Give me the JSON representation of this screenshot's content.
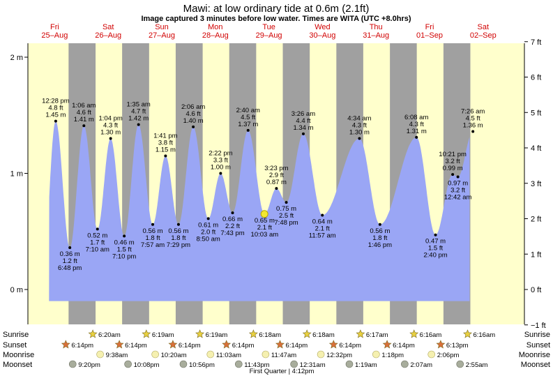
{
  "title": "Mawi: at low  ordinary tide at 0.6m (2.1ft)",
  "subtitle": "Image captured 3 minutes before low water. Times are WITA (UTC +8.0hrs)",
  "colors": {
    "day": "#ffffcc",
    "night": "#a0a0a0",
    "tide": "#9aa6f5",
    "day_label": "#d10000",
    "sunrise_star": "#e8d040",
    "sunset_star": "#d9703a",
    "moonrise": "#f5f0b0",
    "moonset": "#a8ad9c"
  },
  "days": [
    {
      "dow": "Fri",
      "date": "25–Aug"
    },
    {
      "dow": "Sat",
      "date": "26–Aug"
    },
    {
      "dow": "Sun",
      "date": "27–Aug"
    },
    {
      "dow": "Mon",
      "date": "28–Aug"
    },
    {
      "dow": "Tue",
      "date": "29–Aug"
    },
    {
      "dow": "Wed",
      "date": "30–Aug"
    },
    {
      "dow": "Thu",
      "date": "31–Aug"
    },
    {
      "dow": "Fri",
      "date": "01–Sep"
    },
    {
      "dow": "Sat",
      "date": "02–Sep"
    }
  ],
  "chart_data": {
    "type": "area",
    "title": "Mawi: at low  ordinary tide at 0.6m (2.1ft)",
    "x_unit": "hours from 25-Aug 00:00 WITA",
    "xlim": [
      0,
      195
    ],
    "ylim": [
      -0.3,
      2.1
    ],
    "y_left_ticks": [
      {
        "v": 0,
        "label": "0 m"
      },
      {
        "v": 1,
        "label": "1 m"
      },
      {
        "v": 2,
        "label": "2 m"
      }
    ],
    "y_right_ticks": [
      {
        "v": -1,
        "label": "−1 ft"
      },
      {
        "v": 0,
        "label": "0 ft"
      },
      {
        "v": 1,
        "label": "1 ft"
      },
      {
        "v": 2,
        "label": "2 ft"
      },
      {
        "v": 3,
        "label": "3 ft"
      },
      {
        "v": 4,
        "label": "4 ft"
      },
      {
        "v": 5,
        "label": "5 ft"
      },
      {
        "v": 6,
        "label": "6 ft"
      },
      {
        "v": 7,
        "label": "7 ft"
      }
    ],
    "tides": [
      {
        "t": 6.0,
        "h": -0.1,
        "dummy": true
      },
      {
        "t": 12.47,
        "h": 1.45,
        "labels": [
          "12:28 pm",
          "4.8 ft",
          "1.45 m"
        ],
        "pos": "above"
      },
      {
        "t": 18.8,
        "h": 0.36,
        "labels": [
          "0.36 m",
          "1.2 ft",
          "6:48 pm"
        ],
        "pos": "below"
      },
      {
        "t": 25.1,
        "h": 1.41,
        "labels": [
          "1:06 am",
          "4.6 ft",
          "1.41 m"
        ],
        "pos": "above"
      },
      {
        "t": 31.17,
        "h": 0.52,
        "labels": [
          "0.52 m",
          "1.7 ft",
          "7:10 am"
        ],
        "pos": "below"
      },
      {
        "t": 37.07,
        "h": 1.3,
        "labels": [
          "1:04 pm",
          "4.3 ft",
          "1.30 m"
        ],
        "pos": "above"
      },
      {
        "t": 43.17,
        "h": 0.46,
        "labels": [
          "0.46 m",
          "1.5 ft",
          "7:10 pm"
        ],
        "pos": "below"
      },
      {
        "t": 49.58,
        "h": 1.42,
        "labels": [
          "1:35 am",
          "4.7 ft",
          "1.42 m"
        ],
        "pos": "above"
      },
      {
        "t": 55.95,
        "h": 0.56,
        "labels": [
          "0.56 m",
          "1.8 ft",
          "7:57 am"
        ],
        "pos": "below"
      },
      {
        "t": 61.68,
        "h": 1.15,
        "labels": [
          "1:41 pm",
          "3.8 ft",
          "1.15 m"
        ],
        "pos": "above"
      },
      {
        "t": 67.48,
        "h": 0.56,
        "labels": [
          "0.56 m",
          "1.8 ft",
          "7:29 pm"
        ],
        "pos": "below"
      },
      {
        "t": 74.1,
        "h": 1.4,
        "labels": [
          "2:06 am",
          "4.6 ft",
          "1.40 m"
        ],
        "pos": "above"
      },
      {
        "t": 80.83,
        "h": 0.61,
        "labels": [
          "0.61 m",
          "2.0 ft",
          "8:50 am"
        ],
        "pos": "below"
      },
      {
        "t": 86.37,
        "h": 1.0,
        "labels": [
          "2:22 pm",
          "3.3 ft",
          "1.00 m"
        ],
        "pos": "above"
      },
      {
        "t": 91.72,
        "h": 0.66,
        "labels": [
          "0.66 m",
          "2.2 ft",
          "7:43 pm"
        ],
        "pos": "below"
      },
      {
        "t": 98.67,
        "h": 1.37,
        "labels": [
          "2:40 am",
          "4.5 ft",
          "1.37 m"
        ],
        "pos": "above"
      },
      {
        "t": 106.05,
        "h": 0.65,
        "labels": [
          "0.65 m",
          "2.1 ft",
          "10:03 am"
        ],
        "pos": "below"
      },
      {
        "t": 111.38,
        "h": 0.87,
        "labels": [
          "3:23 pm",
          "2.9 ft",
          "0.87 m"
        ],
        "pos": "above"
      },
      {
        "t": 115.8,
        "h": 0.75,
        "labels": [
          "0.75 m",
          "2.5 ft",
          "7:48 pm"
        ],
        "pos": "below"
      },
      {
        "t": 123.43,
        "h": 1.34,
        "labels": [
          "3:26 am",
          "4.4 ft",
          "1.34 m"
        ],
        "pos": "above"
      },
      {
        "t": 131.95,
        "h": 0.64,
        "labels": [
          "0.64 m",
          "2.1 ft",
          "11:57 am"
        ],
        "pos": "below"
      },
      {
        "t": 148.57,
        "h": 1.3,
        "labels": [
          "4:34 am",
          "4.3 ft",
          "1.30 m"
        ],
        "pos": "above"
      },
      {
        "t": 157.77,
        "h": 0.56,
        "labels": [
          "0.56 m",
          "1.8 ft",
          "1:46 pm"
        ],
        "pos": "below"
      },
      {
        "t": 174.13,
        "h": 1.31,
        "labels": [
          "6:08 am",
          "4.3 ft",
          "1.31 m"
        ],
        "pos": "above"
      },
      {
        "t": 182.67,
        "h": 0.47,
        "labels": [
          "0.47 m",
          "1.5 ft",
          "2:40 pm"
        ],
        "pos": "below"
      },
      {
        "t": 190.35,
        "h": 0.99,
        "labels": [
          "10:21 pm",
          "3.2 ft",
          "0.99 m"
        ],
        "pos": "above"
      },
      {
        "t": 192.7,
        "h": 0.97,
        "labels": [
          "0.97 m",
          "3.2 ft",
          "12:42 am"
        ],
        "pos": "below"
      },
      {
        "t": 199.43,
        "h": 1.36,
        "labels": [
          "7:26 am",
          "4.5 ft",
          "1.36 m"
        ],
        "pos": "above"
      }
    ],
    "current": {
      "t": 106.0,
      "h": 0.65
    }
  },
  "rows": {
    "sunrise_label": "Sunrise",
    "sunset_label": "Sunset",
    "moonrise_label": "Moonrise",
    "moonset_label": "Moonset",
    "sunrise": [
      {
        "t": 30.33,
        "text": "6:20am"
      },
      {
        "t": 54.32,
        "text": "6:19am"
      },
      {
        "t": 78.32,
        "text": "6:19am"
      },
      {
        "t": 102.3,
        "text": "6:18am"
      },
      {
        "t": 126.3,
        "text": "6:18am"
      },
      {
        "t": 150.28,
        "text": "6:17am"
      },
      {
        "t": 174.27,
        "text": "6:16am"
      },
      {
        "t": 198.27,
        "text": "6:16am"
      }
    ],
    "sunset": [
      {
        "t": 18.23,
        "text": "6:14pm"
      },
      {
        "t": 42.23,
        "text": "6:14pm"
      },
      {
        "t": 66.23,
        "text": "6:14pm"
      },
      {
        "t": 90.23,
        "text": "6:14pm"
      },
      {
        "t": 114.23,
        "text": "6:14pm"
      },
      {
        "t": 138.23,
        "text": "6:14pm"
      },
      {
        "t": 162.23,
        "text": "6:14pm"
      },
      {
        "t": 186.22,
        "text": "6:13pm"
      }
    ],
    "moonrise": [
      {
        "t": 33.63,
        "text": "9:38am"
      },
      {
        "t": 58.33,
        "text": "10:20am"
      },
      {
        "t": 83.05,
        "text": "11:03am"
      },
      {
        "t": 107.78,
        "text": "11:47am"
      },
      {
        "t": 132.53,
        "text": "12:32pm"
      },
      {
        "t": 157.3,
        "text": "1:18pm"
      },
      {
        "t": 182.1,
        "text": "2:06pm"
      }
    ],
    "moonset": [
      {
        "t": 21.33,
        "text": "9:20pm"
      },
      {
        "t": 46.13,
        "text": "10:08pm"
      },
      {
        "t": 70.93,
        "text": "10:56pm"
      },
      {
        "t": 95.72,
        "text": "11:43pm"
      },
      {
        "t": 120.52,
        "text": "12:31am"
      },
      {
        "t": 145.32,
        "text": "1:19am"
      },
      {
        "t": 170.12,
        "text": "2:07am"
      },
      {
        "t": 194.92,
        "text": "2:55am"
      }
    ],
    "moon_phase": "First Quarter | 4:12pm"
  }
}
